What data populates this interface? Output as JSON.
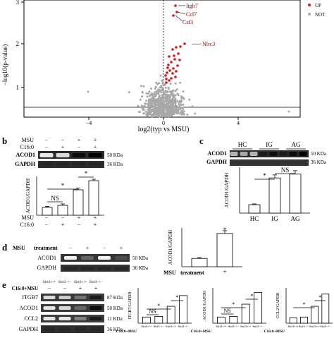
{
  "panel_labels": {
    "a": "",
    "b": "b",
    "c": "c",
    "d": "d",
    "e": "e"
  },
  "volcano": {
    "ylabel": "−log10(p-value)",
    "xlabel": "log2(typ vs MSU)",
    "x_ticks": [
      "−4",
      "0",
      "4"
    ],
    "y_ticks": [
      "1",
      "2",
      "3"
    ],
    "legend": [
      {
        "label": "UP",
        "color": "#d7191c"
      },
      {
        "label": "NOT",
        "color": "#a8a8a8"
      }
    ],
    "genes": [
      "Itgb7",
      "Ccl7",
      "Csf3",
      "Nlrc3"
    ]
  },
  "panel_b": {
    "row_labels": [
      "MSU",
      "C16:0"
    ],
    "row_signs": [
      [
        "−",
        "−",
        "+",
        "+"
      ],
      [
        "−",
        "+",
        "−",
        "+"
      ]
    ],
    "blots": [
      {
        "name": "ACOD1",
        "size": "50 KDa"
      },
      {
        "name": "GAPDH",
        "size": "36 KDa"
      }
    ],
    "chart_data": {
      "type": "bar",
      "ylabel": "ACOD1/GAPDH",
      "categories": [
        "MSU−/C16:0−",
        "MSU−/C16:0+",
        "MSU+/C16:0−",
        "MSU+/C16:0+"
      ],
      "values": [
        0.22,
        0.28,
        0.72,
        0.98
      ],
      "errors": [
        0.03,
        0.04,
        0.05,
        0.04
      ],
      "annotations": [
        "NS",
        "*",
        "*"
      ]
    }
  },
  "panel_c": {
    "groups": [
      "HC",
      "IG",
      "AG"
    ],
    "blots": [
      {
        "name": "ACOD1",
        "size": "50 KDa"
      },
      {
        "name": "GAPDH",
        "size": "36 KDa"
      }
    ],
    "chart_data": {
      "type": "bar",
      "ylabel": "ACOD1/GAPDH",
      "categories": [
        "HC",
        "IG",
        "AG"
      ],
      "values": [
        0.22,
        0.92,
        1.02
      ],
      "errors": [
        0.02,
        0.08,
        0.09
      ],
      "annotations": [
        "*",
        "NS"
      ]
    }
  },
  "panel_d": {
    "treatment_label": "MSU",
    "treatment_word": "treatment",
    "signs": [
      "−",
      "+",
      "−",
      "+"
    ],
    "blots": [
      {
        "name": "ACOD1",
        "size": "50 KDa"
      },
      {
        "name": "GAPDH",
        "size": "36 KDa"
      }
    ],
    "chart_data": {
      "type": "bar",
      "ylabel": "ACOD1/GAPDH",
      "categories": [
        "−",
        "+"
      ],
      "values": [
        0.3,
        1.2
      ],
      "errors": [
        0.03,
        0.1
      ],
      "annotations": [
        "*"
      ],
      "xlabel": "MSU  treatment"
    }
  },
  "panel_e": {
    "header": [
      "Sirt3+/+",
      "Sirt3−/−",
      "Sirt3+/+",
      "Sirt3−/−"
    ],
    "row_label": "C16:0+MSU",
    "row_signs": [
      "−",
      "−",
      "+",
      "+"
    ],
    "blots": [
      {
        "name": "ITGB7",
        "size": "87 KDa"
      },
      {
        "name": "ACOD1",
        "size": "50 KDa"
      },
      {
        "name": "CCL2",
        "size": "11 KDa"
      },
      {
        "name": "GAPDH",
        "size": "36 KDa"
      }
    ],
    "chart_data": [
      {
        "type": "bar",
        "ylabel": "ITGB7/GAPDH",
        "categories": [
          "Sirt3+/+",
          "Sirt3−/−",
          "Sirt3+/+",
          "Sirt3−/−"
        ],
        "values": [
          0.2,
          0.22,
          0.55,
          0.9
        ],
        "annotations": [
          "NS",
          "*",
          "*"
        ],
        "row_label": "C16:0+MSU"
      },
      {
        "type": "bar",
        "ylabel": "ACOD1/GAPDH",
        "categories": [
          "Sirt3+/+",
          "Sirt3−/−",
          "Sirt3+/+",
          "Sirt3−/−"
        ],
        "values": [
          0.2,
          0.22,
          0.62,
          1.0
        ],
        "annotations": [
          "NS",
          "*",
          "*"
        ],
        "row_label": "C16:0+MSU"
      },
      {
        "type": "bar",
        "ylabel": "CCL2/GAPDH",
        "categories": [
          "Sirt3+/+",
          "Sirt3−/−",
          "Sirt3+/+",
          "Sirt3−/−"
        ],
        "values": [
          0.18,
          0.2,
          0.55,
          0.95
        ],
        "annotations": [
          "*",
          "*"
        ],
        "row_label": "C16:0+MSU"
      }
    ]
  }
}
